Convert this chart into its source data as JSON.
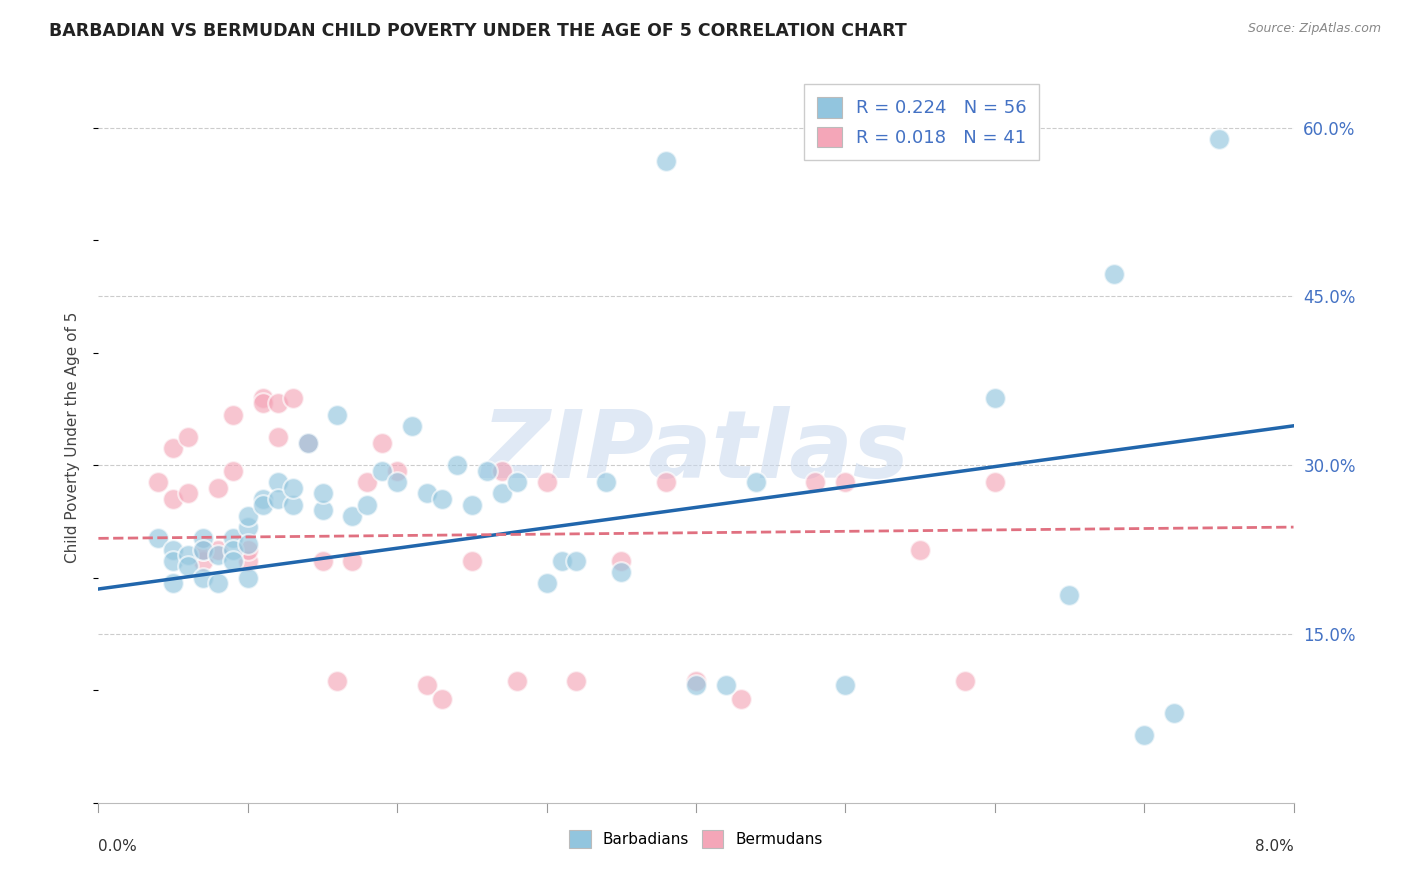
{
  "title": "BARBADIAN VS BERMUDAN CHILD POVERTY UNDER THE AGE OF 5 CORRELATION CHART",
  "source": "Source: ZipAtlas.com",
  "ylabel": "Child Poverty Under the Age of 5",
  "watermark": "ZIPatlas",
  "legend_blue_label": "Barbadians",
  "legend_pink_label": "Bermudans",
  "legend_line1": "R = 0.224   N = 56",
  "legend_line2": "R = 0.018   N = 41",
  "xlim": [
    0.0,
    0.08
  ],
  "ylim": [
    0.0,
    0.65
  ],
  "right_yticks": [
    0.15,
    0.3,
    0.45,
    0.6
  ],
  "right_ytick_labels": [
    "15.0%",
    "30.0%",
    "45.0%",
    "60.0%"
  ],
  "blue_color": "#92c5de",
  "pink_color": "#f4a6b8",
  "blue_line_color": "#2166ac",
  "pink_line_color": "#e07080",
  "text_color_blue": "#4472c4",
  "blue_trend_x0": 0.0,
  "blue_trend_y0": 0.19,
  "blue_trend_x1": 0.08,
  "blue_trend_y1": 0.335,
  "pink_trend_x0": 0.0,
  "pink_trend_y0": 0.235,
  "pink_trend_x1": 0.08,
  "pink_trend_y1": 0.245,
  "blue_scatter_x": [
    0.004,
    0.005,
    0.005,
    0.005,
    0.006,
    0.006,
    0.007,
    0.007,
    0.007,
    0.008,
    0.008,
    0.009,
    0.009,
    0.009,
    0.01,
    0.01,
    0.01,
    0.01,
    0.011,
    0.011,
    0.012,
    0.012,
    0.013,
    0.013,
    0.014,
    0.015,
    0.015,
    0.016,
    0.017,
    0.018,
    0.019,
    0.02,
    0.021,
    0.022,
    0.023,
    0.024,
    0.025,
    0.026,
    0.027,
    0.028,
    0.03,
    0.031,
    0.032,
    0.034,
    0.035,
    0.038,
    0.04,
    0.042,
    0.044,
    0.05,
    0.06,
    0.065,
    0.068,
    0.07,
    0.072,
    0.075
  ],
  "blue_scatter_y": [
    0.235,
    0.225,
    0.215,
    0.195,
    0.22,
    0.21,
    0.235,
    0.225,
    0.2,
    0.22,
    0.195,
    0.235,
    0.225,
    0.215,
    0.245,
    0.255,
    0.23,
    0.2,
    0.27,
    0.265,
    0.285,
    0.27,
    0.265,
    0.28,
    0.32,
    0.26,
    0.275,
    0.345,
    0.255,
    0.265,
    0.295,
    0.285,
    0.335,
    0.275,
    0.27,
    0.3,
    0.265,
    0.295,
    0.275,
    0.285,
    0.195,
    0.215,
    0.215,
    0.285,
    0.205,
    0.57,
    0.105,
    0.105,
    0.285,
    0.105,
    0.36,
    0.185,
    0.47,
    0.06,
    0.08,
    0.59
  ],
  "pink_scatter_x": [
    0.004,
    0.005,
    0.005,
    0.006,
    0.006,
    0.007,
    0.007,
    0.008,
    0.008,
    0.009,
    0.009,
    0.01,
    0.01,
    0.011,
    0.011,
    0.012,
    0.012,
    0.013,
    0.014,
    0.015,
    0.016,
    0.017,
    0.018,
    0.019,
    0.02,
    0.022,
    0.023,
    0.025,
    0.027,
    0.028,
    0.03,
    0.032,
    0.035,
    0.038,
    0.04,
    0.043,
    0.048,
    0.05,
    0.055,
    0.058,
    0.06
  ],
  "pink_scatter_y": [
    0.285,
    0.315,
    0.27,
    0.325,
    0.275,
    0.215,
    0.225,
    0.225,
    0.28,
    0.295,
    0.345,
    0.215,
    0.225,
    0.36,
    0.355,
    0.325,
    0.355,
    0.36,
    0.32,
    0.215,
    0.108,
    0.215,
    0.285,
    0.32,
    0.295,
    0.105,
    0.092,
    0.215,
    0.295,
    0.108,
    0.285,
    0.108,
    0.215,
    0.285,
    0.108,
    0.092,
    0.285,
    0.285,
    0.225,
    0.108,
    0.285
  ]
}
